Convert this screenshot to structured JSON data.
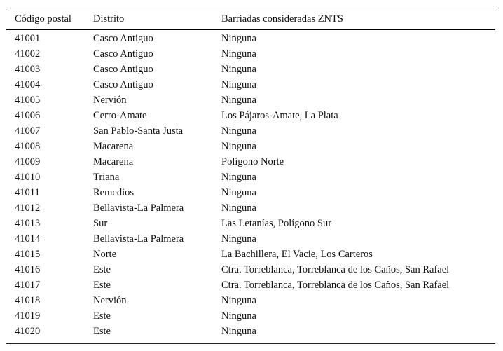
{
  "table": {
    "headers": [
      "Código postal",
      "Distrito",
      "Barriadas consideradas ZNTS"
    ],
    "rows": [
      [
        "41001",
        "Casco Antiguo",
        "Ninguna"
      ],
      [
        "41002",
        "Casco Antiguo",
        "Ninguna"
      ],
      [
        "41003",
        "Casco Antiguo",
        "Ninguna"
      ],
      [
        "41004",
        "Casco Antiguo",
        "Ninguna"
      ],
      [
        "41005",
        "Nervión",
        "Ninguna"
      ],
      [
        "41006",
        "Cerro-Amate",
        "Los Pájaros-Amate, La Plata"
      ],
      [
        "41007",
        "San Pablo-Santa Justa",
        "Ninguna"
      ],
      [
        "41008",
        "Macarena",
        "Ninguna"
      ],
      [
        "41009",
        "Macarena",
        "Polígono Norte"
      ],
      [
        "41010",
        "Triana",
        "Ninguna"
      ],
      [
        "41011",
        "Remedios",
        "Ninguna"
      ],
      [
        "41012",
        "Bellavista-La Palmera",
        "Ninguna"
      ],
      [
        "41013",
        "Sur",
        "Las Letanías, Polígono Sur"
      ],
      [
        "41014",
        "Bellavista-La Palmera",
        "Ninguna"
      ],
      [
        "41015",
        "Norte",
        "La Bachillera, El Vacie, Los Carteros"
      ],
      [
        "41016",
        "Este",
        "Ctra. Torreblanca, Torreblanca de los Caños, San Rafael"
      ],
      [
        "41017",
        "Este",
        "Ctra. Torreblanca, Torreblanca de los Caños, San Rafael"
      ],
      [
        "41018",
        "Nervión",
        "Ninguna"
      ],
      [
        "41019",
        "Este",
        "Ninguna"
      ],
      [
        "41020",
        "Este",
        "Ninguna"
      ]
    ]
  }
}
